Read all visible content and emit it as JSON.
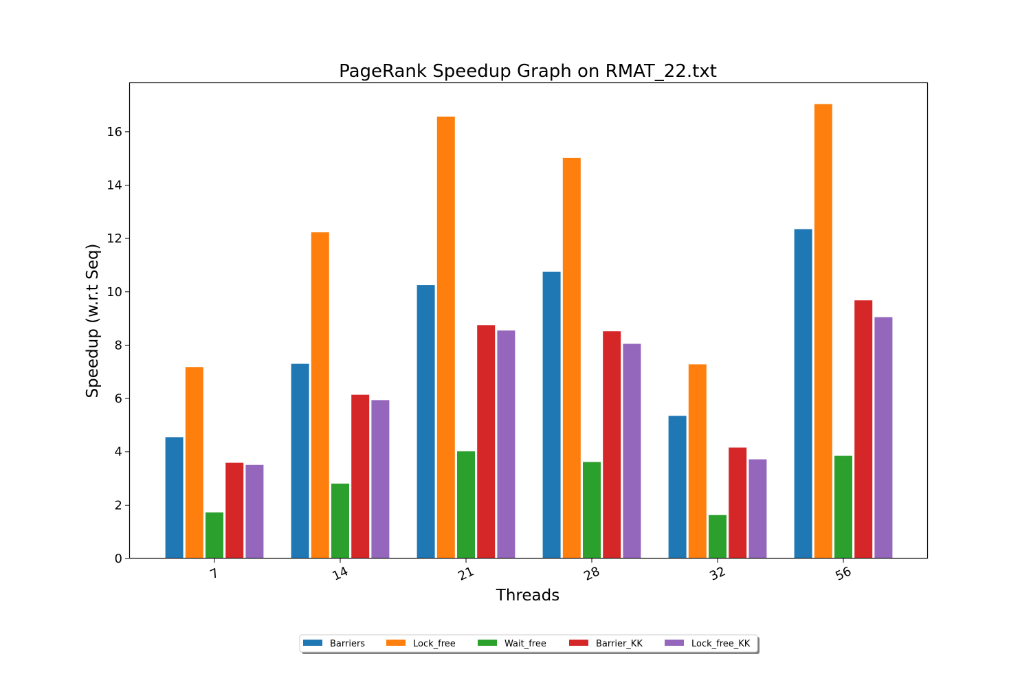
{
  "chart_data": {
    "type": "bar",
    "title": "PageRank Speedup Graph on RMAT_22.txt",
    "xlabel": "Threads",
    "ylabel": "Speedup (w.r.t Seq)",
    "categories": [
      "7",
      "14",
      "21",
      "28",
      "32",
      "56"
    ],
    "ylim": [
      0,
      17.85
    ],
    "yticks": [
      0,
      2,
      4,
      6,
      8,
      10,
      12,
      14,
      16
    ],
    "grid": false,
    "legend_position": "bottom-center",
    "series": [
      {
        "name": "Barriers",
        "color": "#1f77b4",
        "values": [
          4.55,
          7.3,
          10.25,
          10.75,
          5.35,
          12.35
        ]
      },
      {
        "name": "Lock_free",
        "color": "#ff7f0e",
        "values": [
          7.18,
          12.23,
          16.57,
          15.02,
          7.28,
          17.04
        ]
      },
      {
        "name": "Wait_free",
        "color": "#2ca02c",
        "values": [
          1.73,
          2.81,
          4.02,
          3.62,
          1.63,
          3.85
        ]
      },
      {
        "name": "Barrier_KK",
        "color": "#d62728",
        "values": [
          3.59,
          6.14,
          8.75,
          8.52,
          4.16,
          9.68
        ]
      },
      {
        "name": "Lock_free_KK",
        "color": "#9467bd",
        "values": [
          3.51,
          5.94,
          8.55,
          8.05,
          3.72,
          9.05
        ]
      }
    ]
  }
}
